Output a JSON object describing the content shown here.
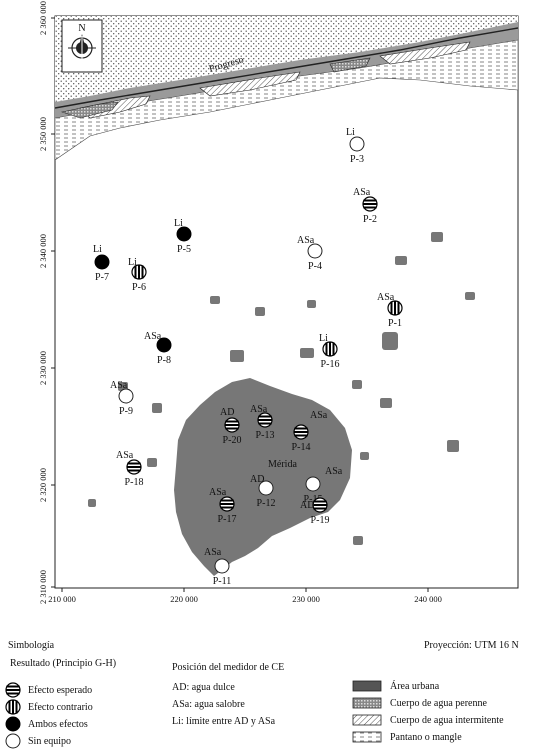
{
  "map": {
    "x_ticks": [
      "210 000",
      "220 000",
      "230 000",
      "240 000"
    ],
    "y_ticks": [
      "2 360 000",
      "2 350 000",
      "2 340 000",
      "2 330 000",
      "2 320 000",
      "2 310 000"
    ],
    "city_progreso": "Progreso",
    "city_merida": "Mérida",
    "north": "N"
  },
  "wells": [
    {
      "id": "P-1",
      "type": "ASa",
      "result": "contrario"
    },
    {
      "id": "P-2",
      "type": "ASa",
      "result": "esperado"
    },
    {
      "id": "P-3",
      "type": "Li",
      "result": "sin"
    },
    {
      "id": "P-4",
      "type": "ASa",
      "result": "sin"
    },
    {
      "id": "P-5",
      "type": "Li",
      "result": "ambos"
    },
    {
      "id": "P-6",
      "type": "Li",
      "result": "contrario"
    },
    {
      "id": "P-7",
      "type": "Li",
      "result": "ambos"
    },
    {
      "id": "P-8",
      "type": "ASa",
      "result": "ambos"
    },
    {
      "id": "P-9",
      "type": "ASa",
      "result": "sin"
    },
    {
      "id": "P-11",
      "type": "ASa",
      "result": "sin"
    },
    {
      "id": "P-12",
      "type": "AD",
      "result": "sin"
    },
    {
      "id": "P-13",
      "type": "ASa",
      "result": "esperado"
    },
    {
      "id": "P-14",
      "type": "ASa",
      "result": "esperado"
    },
    {
      "id": "P-15",
      "type": "ASa",
      "result": "sin"
    },
    {
      "id": "P-16",
      "type": "Li",
      "result": "contrario"
    },
    {
      "id": "P-17",
      "type": "ASa",
      "result": "esperado"
    },
    {
      "id": "P-18",
      "type": "ASa",
      "result": "esperado"
    },
    {
      "id": "P-19",
      "type": "AD",
      "result": "esperado"
    },
    {
      "id": "P-20",
      "type": "AD",
      "result": "esperado"
    }
  ],
  "legend": {
    "simbologia": "Simbología",
    "proyeccion": "Proyección: UTM 16 N",
    "resultado_title": "Resultado (Principio G-H)",
    "posicion_title": "Posición del medidor de CE",
    "results": [
      {
        "key": "esperado",
        "label": "Efecto esperado"
      },
      {
        "key": "contrario",
        "label": "Efecto contrario"
      },
      {
        "key": "ambos",
        "label": "Ambos efectos"
      },
      {
        "key": "sin",
        "label": "Sin equipo"
      }
    ],
    "positions": [
      "AD: agua dulce",
      "ASa: agua salobre",
      "Li: límite entre AD y ASa"
    ],
    "areas": [
      {
        "key": "urbana",
        "label": "Área urbana"
      },
      {
        "key": "perenne",
        "label": "Cuerpo de agua perenne"
      },
      {
        "key": "intermitente",
        "label": "Cuerpo de agua intermitente"
      },
      {
        "key": "pantano",
        "label": "Pantano o mangle"
      }
    ]
  }
}
